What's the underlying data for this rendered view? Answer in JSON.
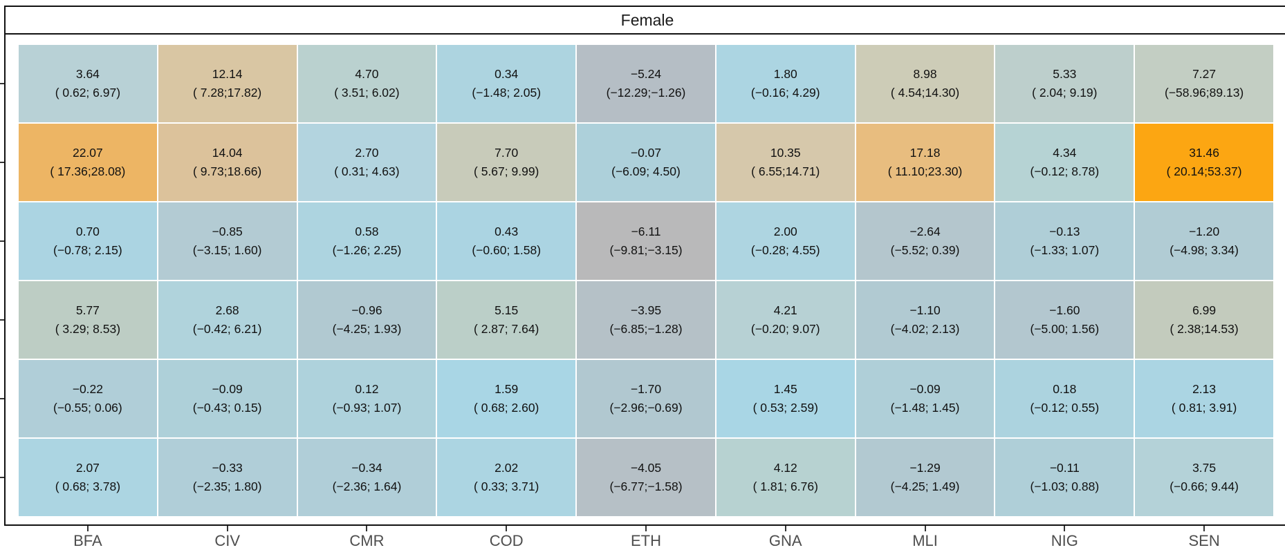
{
  "chart_data": {
    "type": "heatmap",
    "facet_label": "Female",
    "title": "",
    "xlabel": "",
    "ylabel": "",
    "x_categories": [
      "BFA",
      "CIV",
      "CMR",
      "COD",
      "ETH",
      "GNA",
      "MLI",
      "NIG",
      "SEN"
    ],
    "y_rows": 6,
    "color_low": "#a9d4e3",
    "color_mid": "#b8b8b8",
    "color_high": "#ffa500",
    "rows": [
      [
        {
          "value": "3.64",
          "ci": "( 0.62; 6.97)",
          "color": "#b8d1d6"
        },
        {
          "value": "12.14",
          "ci": "( 7.28;17.82)",
          "color": "#d9c6a3"
        },
        {
          "value": "4.70",
          "ci": "( 3.51; 6.02)",
          "color": "#bad1cf"
        },
        {
          "value": "0.34",
          "ci": "(−1.48; 2.05)",
          "color": "#add4e0"
        },
        {
          "value": "−5.24",
          "ci": "(−12.29;−1.26)",
          "color": "#b5bec5"
        },
        {
          "value": "1.80",
          "ci": "(−0.16; 4.29)",
          "color": "#acd5e2"
        },
        {
          "value": "8.98",
          "ci": "( 4.54;14.30)",
          "color": "#cdccb7"
        },
        {
          "value": "5.33",
          "ci": "( 2.04; 9.19)",
          "color": "#bdcfcc"
        },
        {
          "value": "7.27",
          "ci": "(−58.96;89.13)",
          "color": "#c3cec3"
        }
      ],
      [
        {
          "value": "22.07",
          "ci": "( 17.36;28.08)",
          "color": "#edb564"
        },
        {
          "value": "14.04",
          "ci": "( 9.73;18.66)",
          "color": "#dcc29b"
        },
        {
          "value": "2.70",
          "ci": "( 0.31; 4.63)",
          "color": "#b3d4df"
        },
        {
          "value": "7.70",
          "ci": "( 5.67; 9.99)",
          "color": "#c8cbba"
        },
        {
          "value": "−0.07",
          "ci": "(−6.09; 4.50)",
          "color": "#add0da"
        },
        {
          "value": "10.35",
          "ci": "( 6.55;14.71)",
          "color": "#d6c8ab"
        },
        {
          "value": "17.18",
          "ci": "( 11.10;23.30)",
          "color": "#e8bd7f"
        },
        {
          "value": "4.34",
          "ci": "(−0.12; 8.78)",
          "color": "#b6d3d4"
        },
        {
          "value": "31.46",
          "ci": "( 20.14;53.37)",
          "color": "#fca612"
        }
      ],
      [
        {
          "value": "0.70",
          "ci": "(−0.78; 2.15)",
          "color": "#abd4e2"
        },
        {
          "value": "−0.85",
          "ci": "(−3.15; 1.60)",
          "color": "#b3cbd3"
        },
        {
          "value": "0.58",
          "ci": "(−1.26; 2.25)",
          "color": "#add4e0"
        },
        {
          "value": "0.43",
          "ci": "(−0.60; 1.58)",
          "color": "#abd4e2"
        },
        {
          "value": "−6.11",
          "ci": "(−9.81;−3.15)",
          "color": "#b9b9ba"
        },
        {
          "value": "2.00",
          "ci": "(−0.28; 4.55)",
          "color": "#aed5e1"
        },
        {
          "value": "−2.64",
          "ci": "(−5.52; 0.39)",
          "color": "#b4c6cd"
        },
        {
          "value": "−0.13",
          "ci": "(−1.33; 1.07)",
          "color": "#afced7"
        },
        {
          "value": "−1.20",
          "ci": "(−4.98; 3.34)",
          "color": "#b1ccd4"
        }
      ],
      [
        {
          "value": "5.77",
          "ci": "( 3.29; 8.53)",
          "color": "#bdcdc4"
        },
        {
          "value": "2.68",
          "ci": "(−0.42; 6.21)",
          "color": "#b0d3dc"
        },
        {
          "value": "−0.96",
          "ci": "(−4.25; 1.93)",
          "color": "#b1c9d1"
        },
        {
          "value": "5.15",
          "ci": "( 2.87; 7.64)",
          "color": "#bbcfc8"
        },
        {
          "value": "−3.95",
          "ci": "(−6.85;−1.28)",
          "color": "#b5c1c7"
        },
        {
          "value": "4.21",
          "ci": "(−0.20; 9.07)",
          "color": "#b7d1d4"
        },
        {
          "value": "−1.10",
          "ci": "(−4.02; 2.13)",
          "color": "#b1cad2"
        },
        {
          "value": "−1.60",
          "ci": "(−5.00; 1.56)",
          "color": "#b3c7cf"
        },
        {
          "value": "6.99",
          "ci": "( 2.38;14.53)",
          "color": "#c3cbbd"
        }
      ],
      [
        {
          "value": "−0.22",
          "ci": "(−0.55; 0.06)",
          "color": "#b0ced8"
        },
        {
          "value": "−0.09",
          "ci": "(−0.43; 0.15)",
          "color": "#aed0d9"
        },
        {
          "value": "0.12",
          "ci": "(−0.93; 1.07)",
          "color": "#aed2dc"
        },
        {
          "value": "1.59",
          "ci": "( 0.68; 2.60)",
          "color": "#a9d6e5"
        },
        {
          "value": "−1.70",
          "ci": "(−2.96;−0.69)",
          "color": "#b1c8d0"
        },
        {
          "value": "1.45",
          "ci": "( 0.53; 2.59)",
          "color": "#a9d6e5"
        },
        {
          "value": "−0.09",
          "ci": "(−1.48; 1.45)",
          "color": "#afcfd8"
        },
        {
          "value": "0.18",
          "ci": "(−0.12; 0.55)",
          "color": "#acd3df"
        },
        {
          "value": "2.13",
          "ci": "( 0.81; 3.91)",
          "color": "#abd5e3"
        }
      ],
      [
        {
          "value": "2.07",
          "ci": "( 0.68; 3.78)",
          "color": "#acd5e2"
        },
        {
          "value": "−0.33",
          "ci": "(−2.35; 1.80)",
          "color": "#b0ced8"
        },
        {
          "value": "−0.34",
          "ci": "(−2.36; 1.64)",
          "color": "#b0ced8"
        },
        {
          "value": "2.02",
          "ci": "( 0.33; 3.71)",
          "color": "#acd5e2"
        },
        {
          "value": "−4.05",
          "ci": "(−6.77;−1.58)",
          "color": "#b6c0c6"
        },
        {
          "value": "4.12",
          "ci": "( 1.81; 6.76)",
          "color": "#b7d2d1"
        },
        {
          "value": "−1.29",
          "ci": "(−4.25; 1.49)",
          "color": "#b2c9d1"
        },
        {
          "value": "−0.11",
          "ci": "(−1.03; 0.88)",
          "color": "#afcfd8"
        },
        {
          "value": "3.75",
          "ci": "(−0.66; 9.44)",
          "color": "#b4d2d8"
        }
      ]
    ]
  }
}
